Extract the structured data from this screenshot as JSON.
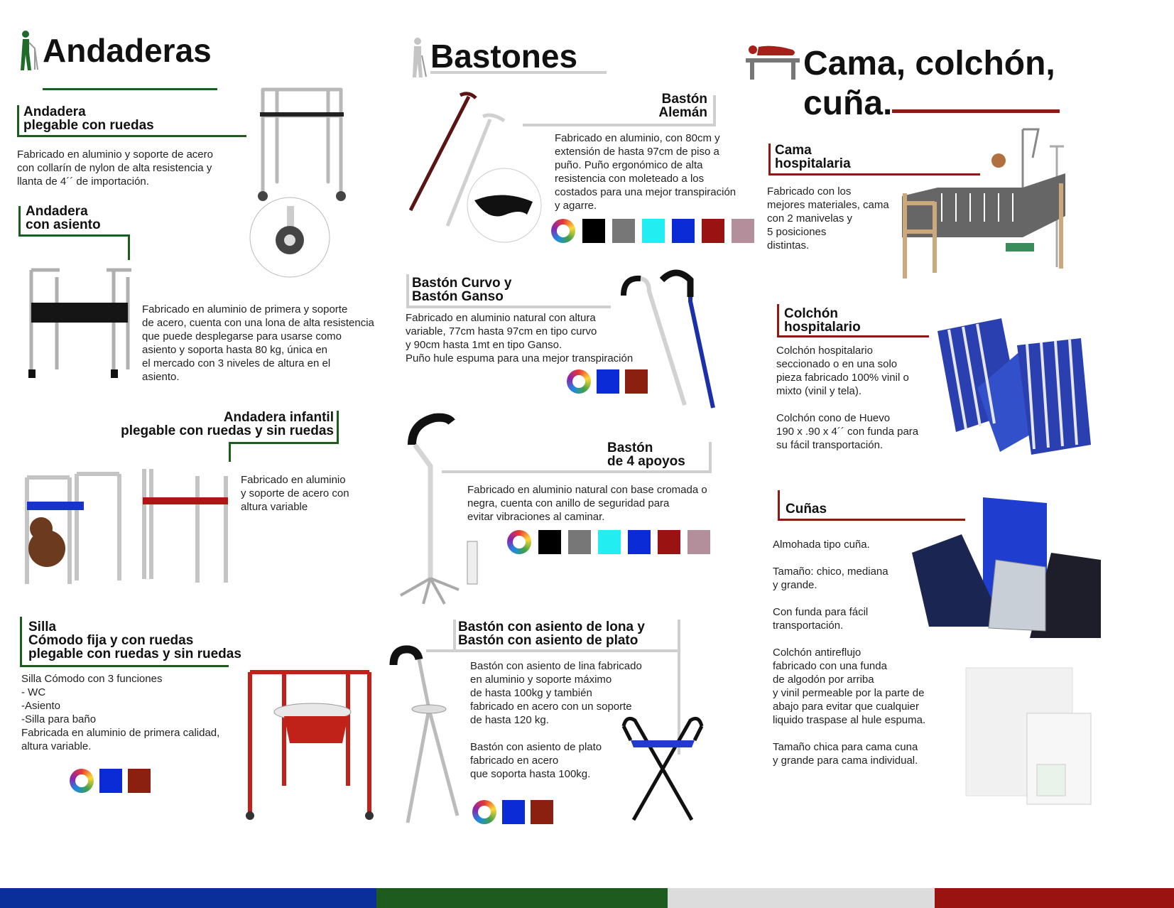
{
  "colors": {
    "green": "#1e5b1e",
    "grey": "#d0d0d0",
    "red": "#8b1a14",
    "blue": "#0b2f9a"
  },
  "andaderas": {
    "title": "Andaderas",
    "plegable": {
      "title_l1": "Andadera",
      "title_l2": "plegable con ruedas",
      "text": "Fabricado en aluminio y soporte de acero\ncon collarín de nylon de alta resistencia y\nllanta de 4´´ de importación."
    },
    "asiento": {
      "title_l1": "Andadera",
      "title_l2": "con asiento",
      "text": "Fabricado en aluminio de primera y soporte\nde acero, cuenta con una lona de alta resistencia\nque puede desplegarse para usarse como\nasiento y soporta hasta 80 kg, única en\nel mercado con 3 niveles de altura en el\nasiento."
    },
    "infantil": {
      "title_l1": "Andadera  infantil",
      "title_l2": "plegable con ruedas y sin ruedas",
      "text": "Fabricado en aluminio\ny soporte de acero con\naltura variable"
    },
    "silla": {
      "title_l1": "Silla",
      "title_l2": "Cómodo fija  y con ruedas",
      "title_l3": "plegable con ruedas y sin ruedas",
      "text": "Silla Cómodo con 3 funciones\n- WC\n-Asiento\n-Silla para baño\nFabricada en aluminio de primera calidad,\naltura variable.",
      "swatches": [
        "#0b2bd6",
        "#8b1f10"
      ]
    }
  },
  "bastones": {
    "title": "Bastones",
    "aleman": {
      "title_l1": "Bastón",
      "title_l2": "Alemán",
      "text": "Fabricado en aluminio, con 80cm y\nextensión de hasta 97cm de piso a\npuño. Puño ergonómico de alta\nresistencia con moleteado a los\ncostados para una mejor transpiración\ny agarre.",
      "swatches": [
        "#000000",
        "#777777",
        "#22eef2",
        "#0b2bd6",
        "#9b1212",
        "#b38f9b"
      ]
    },
    "curvo": {
      "title_l1": "Bastón Curvo y",
      "title_l2": "Bastón Ganso",
      "text": "Fabricado en aluminio natural con altura\nvariable, 77cm hasta 97cm en tipo curvo\ny 90cm hasta 1mt en tipo Ganso.\nPuño hule espuma para una mejor transpiración",
      "swatches": [
        "#0b2bd6",
        "#8b1f10"
      ]
    },
    "apoyos": {
      "title_l1": "Bastón",
      "title_l2": "de 4 apoyos",
      "text": "Fabricado en aluminio natural con base cromada o\nnegra, cuenta con anillo de seguridad para\nevitar vibraciones al caminar.",
      "swatches": [
        "#000000",
        "#777777",
        "#22eef2",
        "#0b2bd6",
        "#9b1212",
        "#b38f9b"
      ]
    },
    "asiento": {
      "title_l1": "Bastón con asiento de lona y",
      "title_l2": "Bastón con asiento de plato",
      "text": "Bastón con asiento de lina fabricado\nen aluminio y soporte máximo\nde hasta 100kg y también\nfabricado en acero con un soporte\nde hasta 120 kg.\n\nBastón con asiento de plato\nfabricado en acero\nque soporta hasta 100kg.",
      "swatches": [
        "#0b2bd6",
        "#8b1f10"
      ]
    }
  },
  "cama": {
    "title_l1": "Cama, colchón,",
    "title_l2": "cuña.",
    "hospitalaria": {
      "title_l1": "Cama",
      "title_l2": "hospitalaria",
      "text": "Fabricado con los\nmejores materiales, cama\ncon 2 manivelas y\n5 posiciones\ndistintas."
    },
    "colchon": {
      "title_l1": "Colchón",
      "title_l2": "hospitalario",
      "text": "Colchón hospitalario\nseccionado o en una solo\npieza fabricado 100% vinil o\nmixto (vinil y tela).\n\nColchón cono de Huevo\n190 x .90  x 4´´ con funda para\nsu fácil transportación."
    },
    "cunas": {
      "title": "Cuñas",
      "text": "Almohada tipo cuña.\n\nTamaño: chico, mediana\ny grande.\n\nCon funda para fácil\ntransportación.\n\nColchón antireflujo\nfabricado con una funda\nde algodón por arriba\ny vinil permeable por la parte de\nabajo para evitar que cualquier\nliquido traspase al hule espuma.\n\nTamaño chica para cama cuna\ny grande para cama individual."
    }
  }
}
